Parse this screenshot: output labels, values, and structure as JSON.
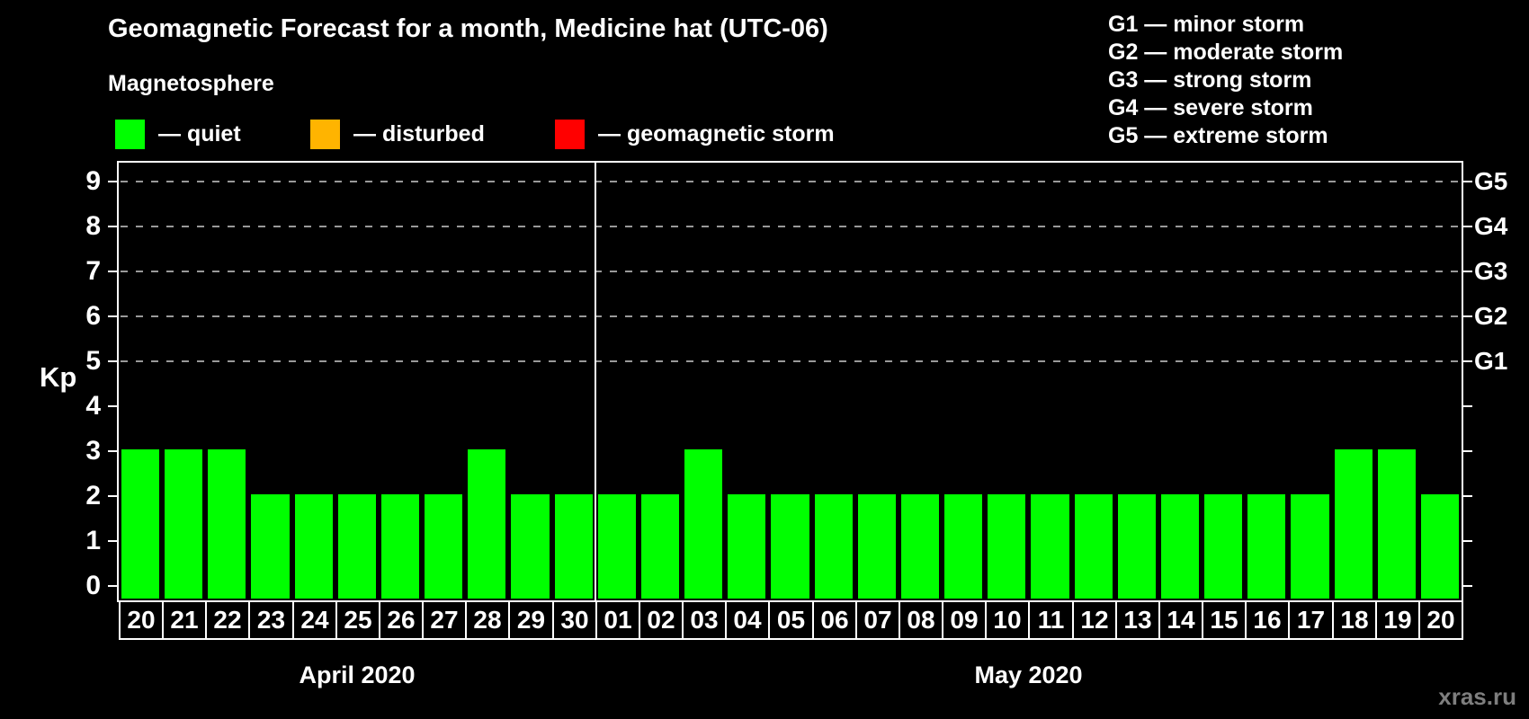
{
  "title": "Geomagnetic Forecast for a month, Medicine hat (UTC-06)",
  "legend": {
    "heading": "Magnetosphere",
    "items": [
      {
        "label": "— quiet",
        "color": "#00ff00"
      },
      {
        "label": "— disturbed",
        "color": "#ffb400"
      },
      {
        "label": "— geomagnetic storm",
        "color": "#ff0000"
      }
    ]
  },
  "g_scale_legend": [
    "G1 — minor storm",
    "G2 — moderate storm",
    "G3 — strong storm",
    "G4 — severe storm",
    "G5 — extreme storm"
  ],
  "watermark": "xras.ru",
  "chart_data": {
    "type": "bar",
    "title": "Geomagnetic Forecast for a month, Medicine hat (UTC-06)",
    "ylabel": "Kp",
    "xlabel": "",
    "y_ticks": [
      0,
      1,
      2,
      3,
      4,
      5,
      6,
      7,
      8,
      9
    ],
    "ylim": [
      0,
      9.5
    ],
    "grid": "dashed horizontal lines at Kp 5-9",
    "gridlines_kp": [
      5,
      6,
      7,
      8,
      9
    ],
    "right_axis": [
      {
        "label": "G5",
        "kp": 9
      },
      {
        "label": "G4",
        "kp": 8
      },
      {
        "label": "G3",
        "kp": 7
      },
      {
        "label": "G2",
        "kp": 6
      },
      {
        "label": "G1",
        "kp": 5
      }
    ],
    "bar_color": "#00ff00",
    "bar_status": "quiet",
    "months": [
      {
        "label": "April 2020",
        "days": [
          "20",
          "21",
          "22",
          "23",
          "24",
          "25",
          "26",
          "27",
          "28",
          "29",
          "30"
        ],
        "values": [
          3,
          3,
          3,
          2,
          2,
          2,
          2,
          2,
          3,
          2,
          2
        ]
      },
      {
        "label": "May 2020",
        "days": [
          "01",
          "02",
          "03",
          "04",
          "05",
          "06",
          "07",
          "08",
          "09",
          "10",
          "11",
          "12",
          "13",
          "14",
          "15",
          "16",
          "17",
          "18",
          "19",
          "20"
        ],
        "values": [
          2,
          2,
          3,
          2,
          2,
          2,
          2,
          2,
          2,
          2,
          2,
          2,
          2,
          2,
          2,
          2,
          2,
          3,
          3,
          2
        ]
      }
    ]
  }
}
